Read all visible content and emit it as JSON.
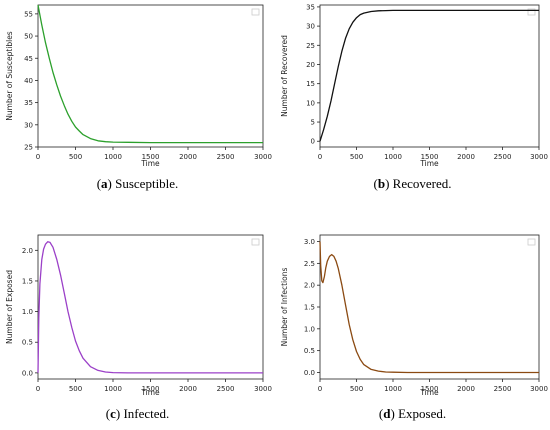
{
  "chart_data": [
    {
      "type": "line",
      "caption_letter": "a",
      "caption_text": " Susceptible.",
      "xlabel": "Time",
      "ylabel": "Number of Susceptibles",
      "xlim": [
        0,
        3000
      ],
      "ylim": [
        25,
        57
      ],
      "xticks": [
        0,
        500,
        1000,
        1500,
        2000,
        2500,
        3000
      ],
      "yticks": [
        25,
        30,
        35,
        40,
        45,
        50,
        55
      ],
      "color": "#2ca02c",
      "x": [
        0,
        50,
        100,
        150,
        200,
        250,
        300,
        350,
        400,
        450,
        500,
        550,
        600,
        700,
        800,
        900,
        1000,
        1200,
        1500,
        2000,
        2500,
        3000
      ],
      "y": [
        57,
        52.5,
        48.5,
        45,
        41.8,
        39,
        36.5,
        34.3,
        32.4,
        30.8,
        29.5,
        28.6,
        27.8,
        26.9,
        26.4,
        26.2,
        26.1,
        26.05,
        26,
        26,
        26,
        26
      ]
    },
    {
      "type": "line",
      "caption_letter": "b",
      "caption_text": " Recovered.",
      "xlabel": "Time",
      "ylabel": "Number of Recovered",
      "xlim": [
        0,
        3000
      ],
      "ylim": [
        -1.5,
        35.5
      ],
      "xticks": [
        0,
        500,
        1000,
        1500,
        2000,
        2500,
        3000
      ],
      "yticks": [
        0,
        5,
        10,
        15,
        20,
        25,
        30,
        35
      ],
      "color": "#111111",
      "x": [
        0,
        50,
        100,
        150,
        200,
        250,
        300,
        350,
        400,
        450,
        500,
        550,
        600,
        700,
        800,
        900,
        1000,
        1200,
        1500,
        2000,
        2500,
        3000
      ],
      "y": [
        0,
        3,
        6.5,
        10.5,
        15,
        19.5,
        23.5,
        26.8,
        29.3,
        31,
        32.2,
        33,
        33.4,
        33.8,
        34,
        34.05,
        34.1,
        34.1,
        34.1,
        34.1,
        34.1,
        34.1
      ]
    },
    {
      "type": "line",
      "caption_letter": "c",
      "caption_text": " Infected.",
      "xlabel": "Time",
      "ylabel": "Number of Exposed",
      "xlim": [
        0,
        3000
      ],
      "ylim": [
        -0.1,
        2.25
      ],
      "xticks": [
        0,
        500,
        1000,
        1500,
        2000,
        2500,
        3000
      ],
      "yticks": [
        0.0,
        0.5,
        1.0,
        1.5,
        2.0
      ],
      "ytick_labels": [
        "0.0",
        "0.5",
        "1.0",
        "1.5",
        "2.0"
      ],
      "color": "#9b40c8",
      "x": [
        0,
        10,
        25,
        50,
        75,
        100,
        130,
        160,
        200,
        250,
        300,
        350,
        400,
        450,
        500,
        550,
        600,
        700,
        800,
        900,
        1000,
        1200,
        1500,
        2000,
        2500,
        3000
      ],
      "y": [
        0,
        0.9,
        1.45,
        1.85,
        2.02,
        2.1,
        2.14,
        2.13,
        2.05,
        1.85,
        1.6,
        1.3,
        1.0,
        0.74,
        0.52,
        0.36,
        0.24,
        0.1,
        0.04,
        0.015,
        0.005,
        0,
        0,
        0,
        0,
        0
      ]
    },
    {
      "type": "line",
      "caption_letter": "d",
      "caption_text": " Exposed.",
      "xlabel": "Time",
      "ylabel": "Number of Infections",
      "xlim": [
        0,
        3000
      ],
      "ylim": [
        -0.15,
        3.15
      ],
      "xticks": [
        0,
        500,
        1000,
        1500,
        2000,
        2500,
        3000
      ],
      "yticks": [
        0.0,
        0.5,
        1.0,
        1.5,
        2.0,
        2.5,
        3.0
      ],
      "ytick_labels": [
        "0.0",
        "0.5",
        "1.0",
        "1.5",
        "2.0",
        "2.5",
        "3.0"
      ],
      "color": "#8b4a12",
      "x": [
        0,
        10,
        25,
        40,
        60,
        80,
        100,
        130,
        160,
        190,
        220,
        250,
        300,
        350,
        400,
        450,
        500,
        550,
        600,
        700,
        800,
        900,
        1000,
        1200,
        1500,
        2000,
        2500,
        3000
      ],
      "y": [
        3.0,
        2.45,
        2.1,
        2.06,
        2.2,
        2.4,
        2.55,
        2.66,
        2.7,
        2.66,
        2.55,
        2.38,
        2.0,
        1.55,
        1.1,
        0.75,
        0.48,
        0.3,
        0.18,
        0.07,
        0.03,
        0.01,
        0.005,
        0,
        0,
        0,
        0,
        0
      ]
    }
  ]
}
